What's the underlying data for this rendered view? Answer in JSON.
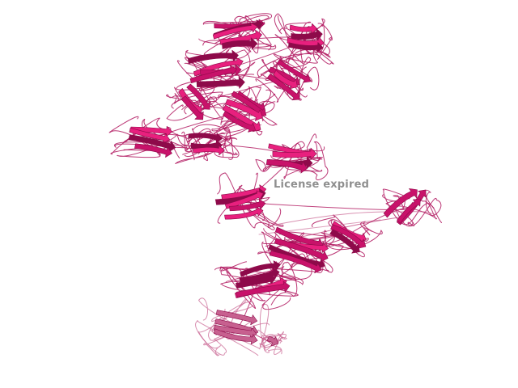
{
  "viewer": {
    "watermark_text": "License expired",
    "colors": {
      "background": "#ffffff",
      "strand_dark": "#8e0a4a",
      "strand_main": "#c8126a",
      "strand_bright": "#e8207e",
      "strand_pale": "#c7608f",
      "coil": "#b0155e",
      "watermark": "#8a8a8a"
    }
  }
}
